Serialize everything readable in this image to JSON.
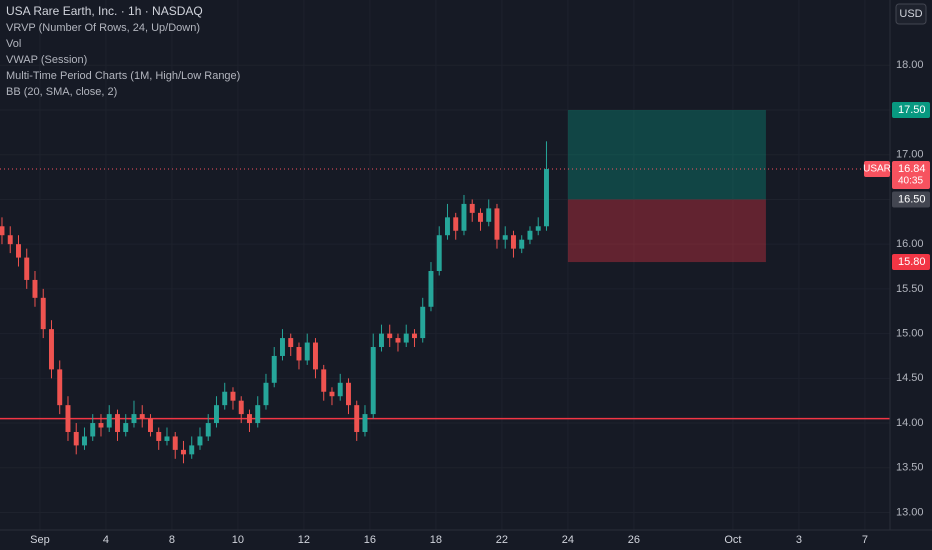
{
  "header": {
    "title": "USA Rare Earth, Inc. · 1h · NASDAQ",
    "indicators": [
      "VRVP (Number Of Rows, 24, Up/Down)",
      "Vol",
      "VWAP (Session)",
      "Multi-Time Period Charts (1M, High/Low Range)",
      "BB (20, SMA, close, 2)"
    ],
    "currency": "USD"
  },
  "chart_data": {
    "type": "candlestick",
    "xlim": [
      -1.21,
      25.76
    ],
    "ylim": [
      12.86,
      18.73
    ],
    "xticks": [
      {
        "value": 0,
        "label": "Sep"
      },
      {
        "value": 2,
        "label": "4"
      },
      {
        "value": 4,
        "label": "8"
      },
      {
        "value": 6,
        "label": "10"
      },
      {
        "value": 8,
        "label": "12"
      },
      {
        "value": 10,
        "label": "16"
      },
      {
        "value": 12,
        "label": "18"
      },
      {
        "value": 14,
        "label": "22"
      },
      {
        "value": 16,
        "label": "24"
      },
      {
        "value": 18,
        "label": "26"
      },
      {
        "value": 21,
        "label": "Oct"
      },
      {
        "value": 23,
        "label": "3"
      },
      {
        "value": 25,
        "label": "7"
      }
    ],
    "yticks": [
      {
        "value": 13,
        "label": "13.00"
      },
      {
        "value": 13.5,
        "label": "13.50"
      },
      {
        "value": 14,
        "label": "14.00"
      },
      {
        "value": 14.5,
        "label": "14.50"
      },
      {
        "value": 15,
        "label": "15.00"
      },
      {
        "value": 15.5,
        "label": "15.50"
      },
      {
        "value": 16,
        "label": "16.00"
      },
      {
        "value": 16.5,
        "label": "16.50"
      },
      {
        "value": 17,
        "label": "17.00"
      },
      {
        "value": 17.5,
        "label": "17.50"
      },
      {
        "value": 18,
        "label": "18.00"
      }
    ],
    "up_color": "#26a69a",
    "down_color": "#ef5350",
    "x": [
      -1.15,
      -0.9,
      -0.65,
      -0.4,
      -0.15,
      0.1,
      0.35,
      0.6,
      0.85,
      1.1,
      1.35,
      1.6,
      1.85,
      2.1,
      2.35,
      2.6,
      2.85,
      3.1,
      3.35,
      3.6,
      3.85,
      4.1,
      4.35,
      4.6,
      4.85,
      5.1,
      5.35,
      5.6,
      5.85,
      6.1,
      6.35,
      6.6,
      6.85,
      7.1,
      7.35,
      7.6,
      7.85,
      8.1,
      8.35,
      8.6,
      8.85,
      9.1,
      9.35,
      9.6,
      9.85,
      10.1,
      10.35,
      10.6,
      10.85,
      11.1,
      11.35,
      11.6,
      11.85,
      12.1,
      12.35,
      12.6,
      12.85,
      13.1,
      13.35,
      13.6,
      13.85,
      14.1,
      14.35,
      14.6,
      14.85,
      15.1,
      15.35
    ],
    "candles": [
      [
        16.2,
        16.3,
        16.0,
        16.1
      ],
      [
        16.1,
        16.2,
        15.9,
        16.0
      ],
      [
        16.0,
        16.1,
        15.75,
        15.85
      ],
      [
        15.85,
        15.95,
        15.5,
        15.6
      ],
      [
        15.6,
        15.7,
        15.3,
        15.4
      ],
      [
        15.4,
        15.5,
        14.95,
        15.05
      ],
      [
        15.05,
        15.15,
        14.5,
        14.6
      ],
      [
        14.6,
        14.7,
        14.1,
        14.2
      ],
      [
        14.2,
        14.3,
        13.8,
        13.9
      ],
      [
        13.9,
        14.0,
        13.65,
        13.75
      ],
      [
        13.75,
        13.95,
        13.7,
        13.85
      ],
      [
        13.85,
        14.1,
        13.8,
        14.0
      ],
      [
        14.0,
        14.1,
        13.85,
        13.95
      ],
      [
        13.95,
        14.2,
        13.9,
        14.1
      ],
      [
        14.1,
        14.15,
        13.8,
        13.9
      ],
      [
        13.9,
        14.1,
        13.85,
        14.0
      ],
      [
        14.0,
        14.25,
        13.95,
        14.1
      ],
      [
        14.1,
        14.2,
        13.95,
        14.05
      ],
      [
        14.05,
        14.1,
        13.85,
        13.9
      ],
      [
        13.9,
        13.95,
        13.7,
        13.8
      ],
      [
        13.8,
        13.95,
        13.75,
        13.85
      ],
      [
        13.85,
        13.9,
        13.6,
        13.7
      ],
      [
        13.7,
        13.8,
        13.55,
        13.65
      ],
      [
        13.65,
        13.85,
        13.6,
        13.75
      ],
      [
        13.75,
        13.95,
        13.7,
        13.85
      ],
      [
        13.85,
        14.1,
        13.8,
        14.0
      ],
      [
        14.0,
        14.3,
        13.95,
        14.2
      ],
      [
        14.2,
        14.45,
        14.15,
        14.35
      ],
      [
        14.35,
        14.4,
        14.15,
        14.25
      ],
      [
        14.25,
        14.3,
        14.0,
        14.1
      ],
      [
        14.1,
        14.15,
        13.9,
        14.0
      ],
      [
        14.0,
        14.3,
        13.95,
        14.2
      ],
      [
        14.2,
        14.55,
        14.15,
        14.45
      ],
      [
        14.45,
        14.85,
        14.4,
        14.75
      ],
      [
        14.75,
        15.05,
        14.7,
        14.95
      ],
      [
        14.95,
        15.0,
        14.75,
        14.85
      ],
      [
        14.85,
        14.9,
        14.6,
        14.7
      ],
      [
        14.7,
        15.0,
        14.65,
        14.9
      ],
      [
        14.9,
        14.95,
        14.5,
        14.6
      ],
      [
        14.6,
        14.65,
        14.25,
        14.35
      ],
      [
        14.35,
        14.4,
        14.2,
        14.3
      ],
      [
        14.3,
        14.55,
        14.25,
        14.45
      ],
      [
        14.45,
        14.5,
        14.1,
        14.2
      ],
      [
        14.2,
        14.25,
        13.8,
        13.9
      ],
      [
        13.9,
        14.2,
        13.85,
        14.1
      ],
      [
        14.1,
        15.0,
        14.05,
        14.85
      ],
      [
        14.85,
        15.1,
        14.8,
        15.0
      ],
      [
        15.0,
        15.1,
        14.85,
        14.95
      ],
      [
        14.95,
        15.0,
        14.8,
        14.9
      ],
      [
        14.9,
        15.1,
        14.85,
        15.0
      ],
      [
        15.0,
        15.05,
        14.85,
        14.95
      ],
      [
        14.95,
        15.4,
        14.9,
        15.3
      ],
      [
        15.3,
        15.8,
        15.25,
        15.7
      ],
      [
        15.7,
        16.2,
        15.65,
        16.1
      ],
      [
        16.1,
        16.45,
        16.05,
        16.3
      ],
      [
        16.3,
        16.35,
        16.05,
        16.15
      ],
      [
        16.15,
        16.55,
        16.1,
        16.45
      ],
      [
        16.45,
        16.5,
        16.25,
        16.35
      ],
      [
        16.35,
        16.4,
        16.15,
        16.25
      ],
      [
        16.25,
        16.5,
        16.2,
        16.4
      ],
      [
        16.4,
        16.45,
        15.95,
        16.05
      ],
      [
        16.05,
        16.2,
        15.95,
        16.1
      ],
      [
        16.1,
        16.15,
        15.85,
        15.95
      ],
      [
        15.95,
        16.1,
        15.9,
        16.05
      ],
      [
        16.05,
        16.2,
        16.0,
        16.15
      ],
      [
        16.15,
        16.3,
        16.1,
        16.2
      ],
      [
        16.2,
        17.15,
        16.15,
        16.84
      ]
    ],
    "horizontal_line": {
      "value": 14.05,
      "color": "#f23645"
    },
    "position": {
      "start": 16,
      "end": 22,
      "target": 17.5,
      "entry": 16.5,
      "stop": 15.8
    },
    "price_tags": [
      {
        "value": 17.5,
        "label": "17.50",
        "color": "#089981"
      },
      {
        "value": 16.5,
        "label": "16.50",
        "color": "#434651"
      },
      {
        "value": 15.8,
        "label": "15.80",
        "color": "#f23645"
      }
    ],
    "last_price": {
      "symbol": "USAR",
      "value": 16.84,
      "label": "16.84",
      "countdown": "40:35",
      "color": "#f7525f"
    }
  }
}
